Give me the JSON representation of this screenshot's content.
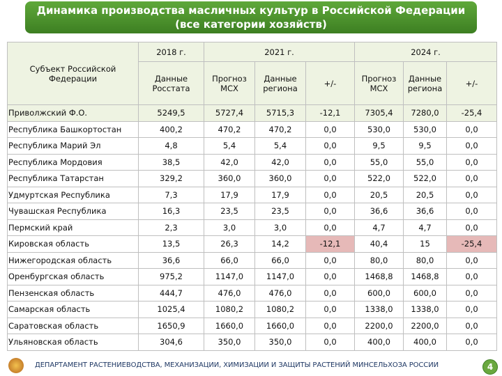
{
  "header": {
    "title": [
      "Динамика производства масличных культур в Российской Федерации",
      "(все категории хозяйств)"
    ]
  },
  "table": {
    "subject_header": "Субъект Российской Федерации",
    "year_headers": [
      "2018 г.",
      "2021 г.",
      "2024 г."
    ],
    "column_headers": [
      "Данные Росстата",
      "Прогноз МСХ",
      "Данные региона",
      "+/-",
      "Прогноз МСХ",
      "Данные региона",
      "+/-"
    ],
    "rows": [
      [
        "Приволжский Ф.О.",
        "5249,5",
        "5727,4",
        "5715,3",
        "-12,1",
        "7305,4",
        "7280,0",
        "-25,4"
      ],
      [
        "Республика Башкортостан",
        "400,2",
        "470,2",
        "470,2",
        "0,0",
        "530,0",
        "530,0",
        "0,0"
      ],
      [
        "Республика Марий Эл",
        "4,8",
        "5,4",
        "5,4",
        "0,0",
        "9,5",
        "9,5",
        "0,0"
      ],
      [
        "Республика Мордовия",
        "38,5",
        "42,0",
        "42,0",
        "0,0",
        "55,0",
        "55,0",
        "0,0"
      ],
      [
        "Республика Татарстан",
        "329,2",
        "360,0",
        "360,0",
        "0,0",
        "522,0",
        "522,0",
        "0,0"
      ],
      [
        "Удмуртская Республика",
        "7,3",
        "17,9",
        "17,9",
        "0,0",
        "20,5",
        "20,5",
        "0,0"
      ],
      [
        "Чувашская Республика",
        "16,3",
        "23,5",
        "23,5",
        "0,0",
        "36,6",
        "36,6",
        "0,0"
      ],
      [
        "Пермский край",
        "2,3",
        "3,0",
        "3,0",
        "0,0",
        "4,7",
        "4,7",
        "0,0"
      ],
      [
        "Кировская область",
        "13,5",
        "26,3",
        "14,2",
        "-12,1",
        "40,4",
        "15",
        "-25,4"
      ],
      [
        "Нижегородская область",
        "36,6",
        "66,0",
        "66,0",
        "0,0",
        "80,0",
        "80,0",
        "0,0"
      ],
      [
        "Оренбургская область",
        "975,2",
        "1147,0",
        "1147,0",
        "0,0",
        "1468,8",
        "1468,8",
        "0,0"
      ],
      [
        "Пензенская область",
        "444,7",
        "476,0",
        "476,0",
        "0,0",
        "600,0",
        "600,0",
        "0,0"
      ],
      [
        "Самарская область",
        "1025,4",
        "1080,2",
        "1080,2",
        "0,0",
        "1338,0",
        "1338,0",
        "0,0"
      ],
      [
        "Саратовская область",
        "1650,9",
        "1660,0",
        "1660,0",
        "0,0",
        "2200,0",
        "2200,0",
        "0,0"
      ],
      [
        "Ульяновская область",
        "304,6",
        "350,0",
        "350,0",
        "0,0",
        "400,0",
        "400,0",
        "0,0"
      ]
    ]
  },
  "footer": {
    "text": "ДЕПАРТАМЕНТ РАСТЕНИЕВОДСТВА, МЕХАНИЗАЦИИ, ХИМИЗАЦИИ И ЗАЩИТЫ РАСТЕНИЙ МИНСЕЛЬХОЗА РОССИИ",
    "page": "4"
  }
}
